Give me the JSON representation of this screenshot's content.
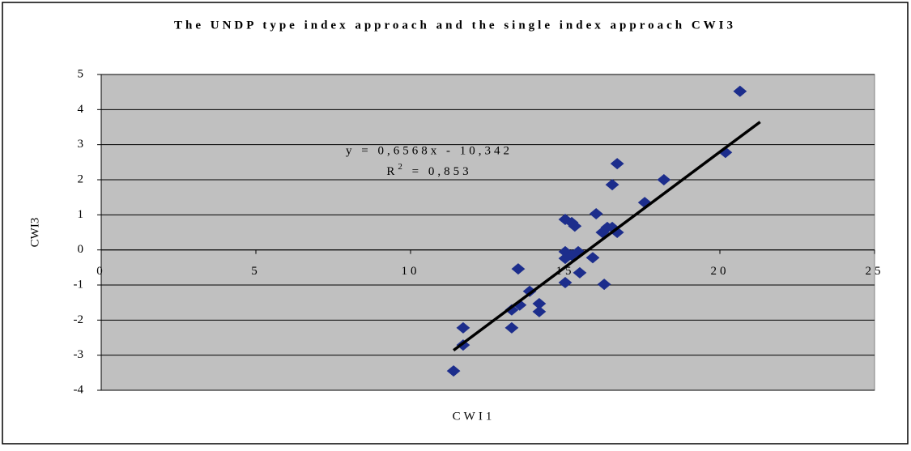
{
  "chart_data": {
    "type": "scatter",
    "title": "The UNDP type index approach and the single index approach CWI3",
    "x_label": "CWI1",
    "y_label": "CWI3",
    "color": "#1c2d8c",
    "plot_background": "#c0c0c0",
    "grid": true,
    "xlim": [
      0,
      25
    ],
    "xticks": [
      0,
      5,
      10,
      15,
      20,
      25
    ],
    "ylim": [
      -4,
      5
    ],
    "yticks": [
      -4,
      -3,
      -2,
      -1,
      0,
      1,
      2,
      3,
      4,
      5
    ],
    "x": [
      11.39,
      11.7,
      11.7,
      13.27,
      13.53,
      13.27,
      13.48,
      13.85,
      14.16,
      14.16,
      15.0,
      15.21,
      15.31,
      15.0,
      15.0,
      15.21,
      15.42,
      15.0,
      15.47,
      15.89,
      16.2,
      16.0,
      16.26,
      16.52,
      16.68,
      16.36,
      16.52,
      16.68,
      17.57,
      18.19,
      20.18,
      20.65
    ],
    "values": [
      -3.45,
      -2.22,
      -2.71,
      -1.71,
      -1.57,
      -2.22,
      -0.54,
      -1.18,
      -1.53,
      -1.76,
      0.87,
      0.78,
      0.68,
      -0.05,
      -0.24,
      -0.15,
      -0.05,
      -0.93,
      -0.65,
      -0.22,
      0.5,
      1.03,
      -0.98,
      1.86,
      2.46,
      0.64,
      0.64,
      0.5,
      1.35,
      2.0,
      2.78,
      4.52
    ],
    "trendline": {
      "slope": 0.6568,
      "intercept": -10.342,
      "x_range": [
        11.39,
        21.3
      ],
      "color": "#000000"
    },
    "trendline_equation": "y = 0,6568x - 10,342",
    "trendline_r2": {
      "prefix": "R",
      "sup": "2",
      "suffix": " = 0,853"
    }
  }
}
